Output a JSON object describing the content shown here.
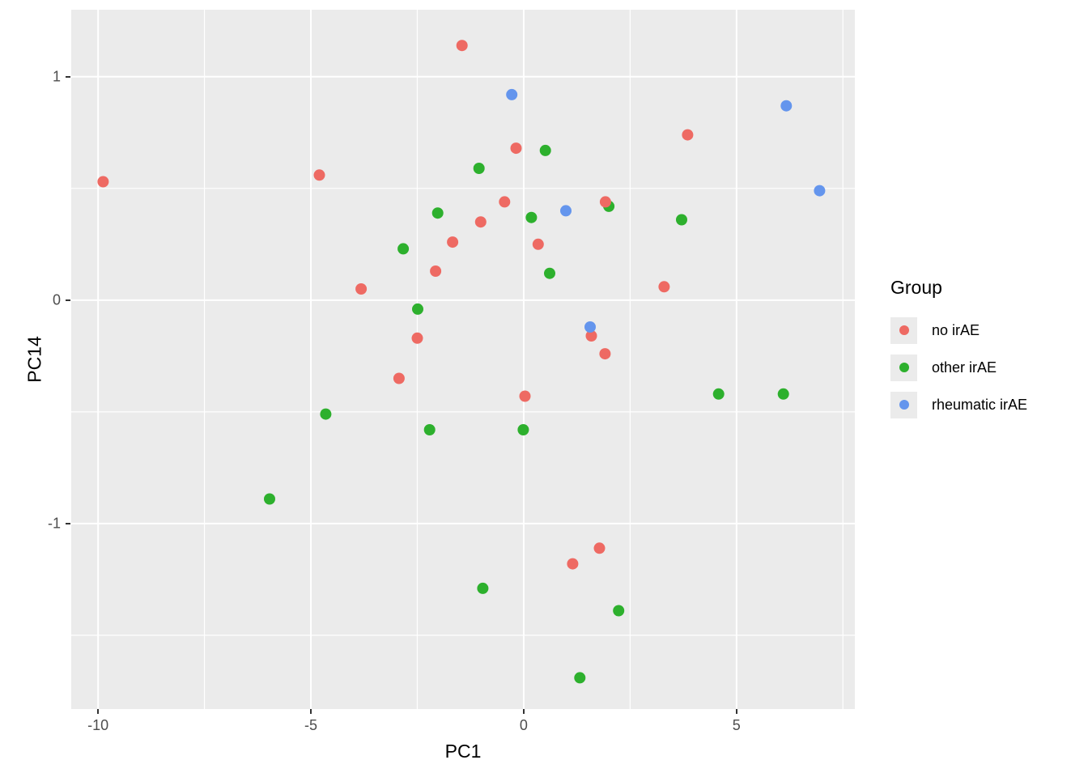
{
  "chart_data": {
    "type": "scatter",
    "xlabel": "PC1",
    "ylabel": "PC14",
    "xlim": [
      -10.63,
      7.78
    ],
    "ylim": [
      -1.83,
      1.3
    ],
    "grid": true,
    "panel_bg": "#EBEBEB",
    "grid_color": "#FFFFFF",
    "point_radius_px": 7,
    "x_ticks": [
      {
        "v": -10,
        "label": "-10"
      },
      {
        "v": -5,
        "label": "-5"
      },
      {
        "v": 0,
        "label": "0"
      },
      {
        "v": 5,
        "label": "5"
      }
    ],
    "y_ticks": [
      {
        "v": 1,
        "label": "1"
      },
      {
        "v": 0,
        "label": "0"
      },
      {
        "v": -1,
        "label": "-1"
      }
    ],
    "x_minor_ticks": [
      -7.5,
      -2.5,
      2.5,
      7.5
    ],
    "y_minor_ticks": [
      0.5,
      -0.5,
      -1.5
    ],
    "legend": {
      "title": "Group",
      "position": "right",
      "items": [
        {
          "label": "no irAE",
          "color": "#EE6A63"
        },
        {
          "label": "other irAE",
          "color": "#2DB02D"
        },
        {
          "label": "rheumatic irAE",
          "color": "#6495ED"
        }
      ]
    },
    "series": [
      {
        "name": "other irAE",
        "color": "#2DB02D",
        "points": [
          [
            0.51,
            0.67
          ],
          [
            -1.05,
            0.59
          ],
          [
            -2.02,
            0.39
          ],
          [
            0.18,
            0.37
          ],
          [
            2.0,
            0.42
          ],
          [
            3.71,
            0.36
          ],
          [
            -2.83,
            0.23
          ],
          [
            0.61,
            0.12
          ],
          [
            -2.49,
            -0.04
          ],
          [
            4.58,
            -0.42
          ],
          [
            6.1,
            -0.42
          ],
          [
            -4.65,
            -0.51
          ],
          [
            -2.21,
            -0.58
          ],
          [
            -0.01,
            -0.58
          ],
          [
            -5.97,
            -0.89
          ],
          [
            -0.96,
            -1.29
          ],
          [
            2.23,
            -1.39
          ],
          [
            1.32,
            -1.69
          ]
        ]
      },
      {
        "name": "no irAE",
        "color": "#EE6A63",
        "points": [
          [
            -9.88,
            0.53
          ],
          [
            -4.8,
            0.56
          ],
          [
            -1.45,
            1.14
          ],
          [
            -0.18,
            0.68
          ],
          [
            3.85,
            0.74
          ],
          [
            -0.45,
            0.44
          ],
          [
            -1.01,
            0.35
          ],
          [
            1.92,
            0.44
          ],
          [
            -1.67,
            0.26
          ],
          [
            0.34,
            0.25
          ],
          [
            -2.07,
            0.13
          ],
          [
            -3.82,
            0.05
          ],
          [
            3.3,
            0.06
          ],
          [
            -2.5,
            -0.17
          ],
          [
            1.59,
            -0.16
          ],
          [
            1.91,
            -0.24
          ],
          [
            -2.93,
            -0.35
          ],
          [
            0.03,
            -0.43
          ],
          [
            1.78,
            -1.11
          ],
          [
            1.15,
            -1.18
          ]
        ]
      },
      {
        "name": "rheumatic irAE",
        "color": "#6495ED",
        "points": [
          [
            -0.28,
            0.92
          ],
          [
            6.17,
            0.87
          ],
          [
            6.95,
            0.49
          ],
          [
            0.99,
            0.4
          ],
          [
            1.56,
            -0.12
          ]
        ]
      }
    ]
  }
}
